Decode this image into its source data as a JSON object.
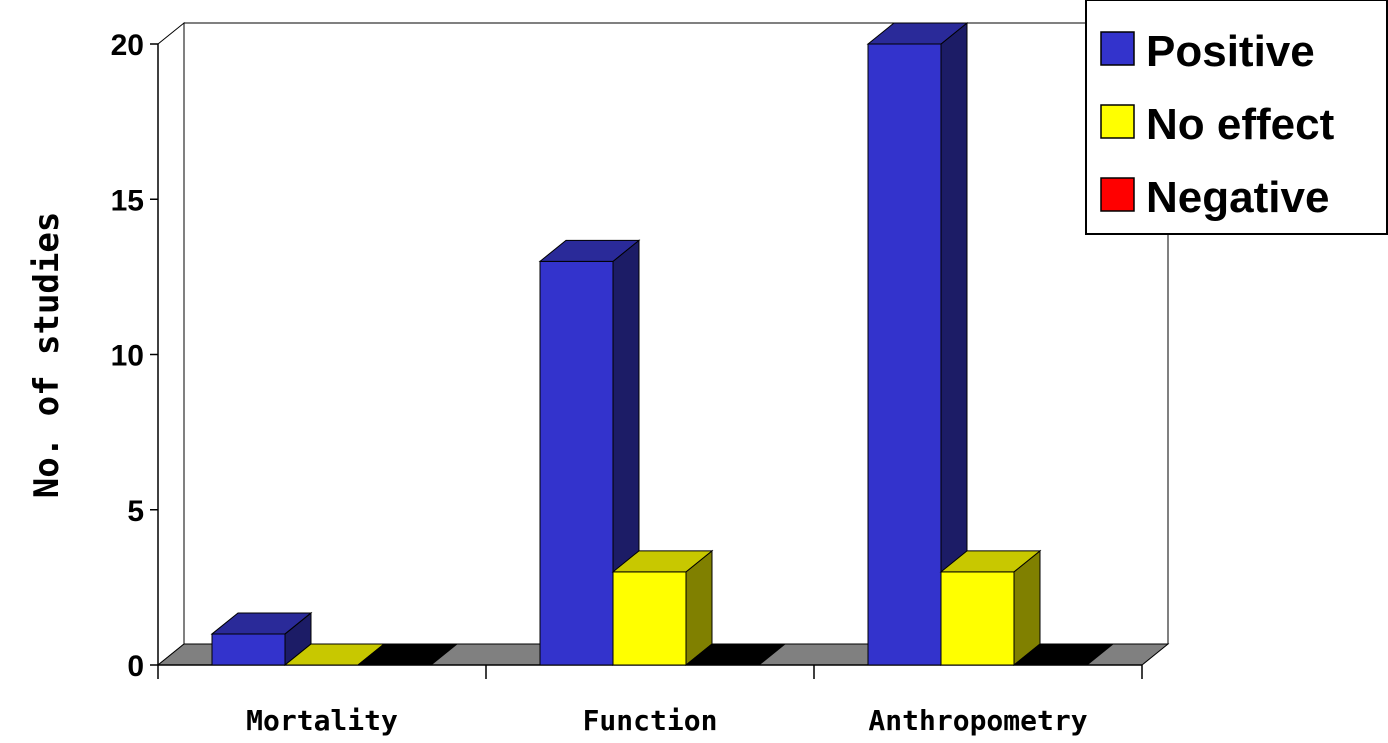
{
  "chart_data": {
    "type": "bar",
    "ylabel": "No. of studies",
    "xlabel": "",
    "categories": [
      "Mortality",
      "Function",
      "Anthropometry"
    ],
    "series": [
      {
        "name": "Positive",
        "values": [
          1,
          13,
          20
        ],
        "color": "#3333cc",
        "side_color": "#1c1c66",
        "top_color": "#2a2a99"
      },
      {
        "name": "No effect",
        "values": [
          0,
          3,
          3
        ],
        "color": "#ffff00",
        "side_color": "#808000",
        "top_color": "#c8c800"
      },
      {
        "name": "Negative",
        "values": [
          0,
          0,
          0
        ],
        "color": "#ff0000",
        "side_color": "#000000",
        "top_color": "#000000"
      }
    ],
    "ylim": [
      0,
      20
    ],
    "yticks": [
      "0",
      "5",
      "10",
      "15",
      "20"
    ],
    "ytick_values": [
      0,
      5,
      10,
      15,
      20
    ],
    "legend_position": "top-right",
    "style": "3d-clustered",
    "floor_color": "#808080"
  }
}
